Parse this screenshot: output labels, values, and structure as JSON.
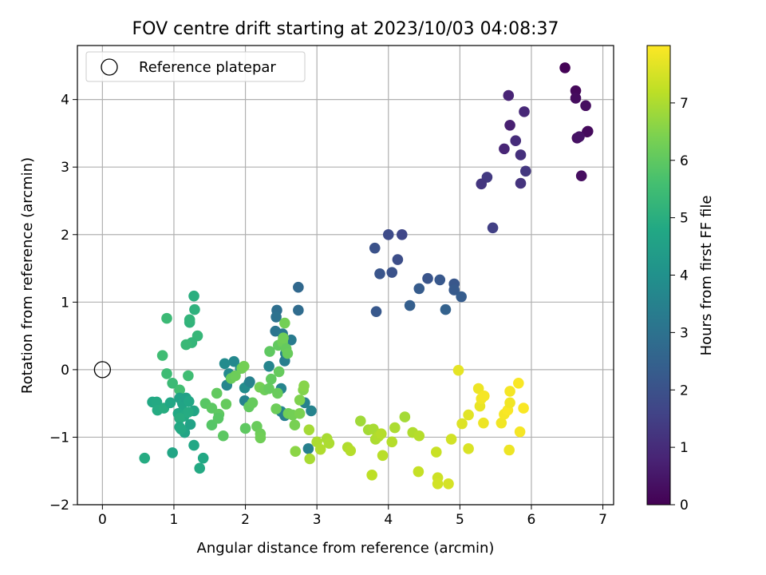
{
  "chart_data": {
    "type": "scatter",
    "title": "FOV centre drift starting at 2023/10/03 04:08:37",
    "xlabel": "Angular distance from reference (arcmin)",
    "ylabel": "Rotation from reference (arcmin)",
    "xlim": [
      -0.35,
      7.15
    ],
    "ylim": [
      -2.0,
      4.8
    ],
    "xticks": [
      0,
      1,
      2,
      3,
      4,
      5,
      6,
      7
    ],
    "yticks": [
      -2,
      -1,
      0,
      1,
      2,
      3,
      4
    ],
    "grid": true,
    "legend": {
      "position": "top-left",
      "entries": [
        "Reference platepar"
      ]
    },
    "reference_point": {
      "x": 0,
      "y": 0,
      "label": "Reference platepar"
    },
    "colorbar": {
      "label": "Hours from first FF file",
      "colormap": "viridis",
      "range": [
        0,
        8.0
      ],
      "ticks": [
        0,
        1,
        2,
        3,
        4,
        5,
        6,
        7
      ]
    },
    "points": [
      {
        "x": 6.47,
        "y": 4.47,
        "t": 0.05
      },
      {
        "x": 6.62,
        "y": 4.13,
        "t": 0.15
      },
      {
        "x": 6.62,
        "y": 4.02,
        "t": 0.25
      },
      {
        "x": 6.76,
        "y": 3.91,
        "t": 0.3
      },
      {
        "x": 6.78,
        "y": 3.52,
        "t": 0.1
      },
      {
        "x": 6.79,
        "y": 3.53,
        "t": 0.2
      },
      {
        "x": 6.64,
        "y": 3.43,
        "t": 0.35
      },
      {
        "x": 6.67,
        "y": 3.45,
        "t": 0.4
      },
      {
        "x": 6.7,
        "y": 2.87,
        "t": 0.3
      },
      {
        "x": 5.68,
        "y": 4.06,
        "t": 0.8
      },
      {
        "x": 5.9,
        "y": 3.82,
        "t": 0.9
      },
      {
        "x": 5.7,
        "y": 3.62,
        "t": 0.7
      },
      {
        "x": 5.78,
        "y": 3.39,
        "t": 1.0
      },
      {
        "x": 5.62,
        "y": 3.27,
        "t": 0.85
      },
      {
        "x": 5.85,
        "y": 3.18,
        "t": 1.1
      },
      {
        "x": 5.92,
        "y": 2.94,
        "t": 1.3
      },
      {
        "x": 5.38,
        "y": 2.85,
        "t": 1.35
      },
      {
        "x": 5.3,
        "y": 2.75,
        "t": 1.25
      },
      {
        "x": 5.85,
        "y": 2.76,
        "t": 1.2
      },
      {
        "x": 5.46,
        "y": 2.1,
        "t": 1.5
      },
      {
        "x": 4.0,
        "y": 2.0,
        "t": 1.8
      },
      {
        "x": 4.19,
        "y": 2.0,
        "t": 1.7
      },
      {
        "x": 3.81,
        "y": 1.8,
        "t": 2.0
      },
      {
        "x": 4.13,
        "y": 1.63,
        "t": 1.9
      },
      {
        "x": 3.88,
        "y": 1.42,
        "t": 2.1
      },
      {
        "x": 4.05,
        "y": 1.44,
        "t": 2.0
      },
      {
        "x": 4.55,
        "y": 1.35,
        "t": 2.1
      },
      {
        "x": 4.72,
        "y": 1.33,
        "t": 2.2
      },
      {
        "x": 4.92,
        "y": 1.27,
        "t": 2.15
      },
      {
        "x": 4.43,
        "y": 1.2,
        "t": 2.3
      },
      {
        "x": 4.92,
        "y": 1.18,
        "t": 2.25
      },
      {
        "x": 5.02,
        "y": 1.08,
        "t": 2.35
      },
      {
        "x": 4.3,
        "y": 0.95,
        "t": 2.4
      },
      {
        "x": 4.8,
        "y": 0.89,
        "t": 2.5
      },
      {
        "x": 3.83,
        "y": 0.86,
        "t": 2.2
      },
      {
        "x": 2.74,
        "y": 1.22,
        "t": 2.7
      },
      {
        "x": 2.44,
        "y": 0.88,
        "t": 2.9
      },
      {
        "x": 2.74,
        "y": 0.88,
        "t": 2.8
      },
      {
        "x": 2.43,
        "y": 0.78,
        "t": 3.0
      },
      {
        "x": 2.42,
        "y": 0.57,
        "t": 3.1
      },
      {
        "x": 2.52,
        "y": 0.53,
        "t": 3.2
      },
      {
        "x": 2.64,
        "y": 0.44,
        "t": 3.3
      },
      {
        "x": 2.56,
        "y": 0.24,
        "t": 3.5
      },
      {
        "x": 2.55,
        "y": 0.13,
        "t": 3.4
      },
      {
        "x": 2.33,
        "y": 0.05,
        "t": 3.6
      },
      {
        "x": 2.5,
        "y": -0.28,
        "t": 3.6
      },
      {
        "x": 1.84,
        "y": 0.12,
        "t": 3.7
      },
      {
        "x": 1.71,
        "y": 0.09,
        "t": 3.8
      },
      {
        "x": 1.93,
        "y": 0.02,
        "t": 3.9
      },
      {
        "x": 1.77,
        "y": -0.06,
        "t": 3.75
      },
      {
        "x": 1.99,
        "y": -0.27,
        "t": 3.85
      },
      {
        "x": 2.05,
        "y": -0.2,
        "t": 3.95
      },
      {
        "x": 2.06,
        "y": -0.18,
        "t": 3.5
      },
      {
        "x": 1.74,
        "y": -0.23,
        "t": 3.65
      },
      {
        "x": 1.99,
        "y": -0.46,
        "t": 3.55
      },
      {
        "x": 2.5,
        "y": -0.62,
        "t": 3.6
      },
      {
        "x": 2.55,
        "y": -0.68,
        "t": 3.4
      },
      {
        "x": 2.83,
        "y": -0.49,
        "t": 3.5
      },
      {
        "x": 2.92,
        "y": -0.61,
        "t": 3.55
      },
      {
        "x": 2.88,
        "y": -1.17,
        "t": 3.45
      },
      {
        "x": 1.28,
        "y": 1.09,
        "t": 5.0
      },
      {
        "x": 1.29,
        "y": 0.89,
        "t": 5.1
      },
      {
        "x": 1.22,
        "y": 0.7,
        "t": 5.15
      },
      {
        "x": 1.22,
        "y": 0.74,
        "t": 5.2
      },
      {
        "x": 1.33,
        "y": 0.5,
        "t": 5.3
      },
      {
        "x": 1.25,
        "y": 0.4,
        "t": 5.25
      },
      {
        "x": 1.17,
        "y": 0.37,
        "t": 5.35
      },
      {
        "x": 0.9,
        "y": 0.76,
        "t": 5.4
      },
      {
        "x": 0.84,
        "y": 0.21,
        "t": 5.5
      },
      {
        "x": 0.9,
        "y": -0.06,
        "t": 5.45
      },
      {
        "x": 1.2,
        "y": -0.09,
        "t": 5.5
      },
      {
        "x": 0.98,
        "y": -0.2,
        "t": 5.4
      },
      {
        "x": 1.08,
        "y": -0.3,
        "t": 5.55
      },
      {
        "x": 0.7,
        "y": -0.48,
        "t": 4.8
      },
      {
        "x": 0.76,
        "y": -0.48,
        "t": 4.85
      },
      {
        "x": 0.77,
        "y": -0.6,
        "t": 4.9
      },
      {
        "x": 0.86,
        "y": -0.57,
        "t": 4.95
      },
      {
        "x": 0.95,
        "y": -0.49,
        "t": 4.75
      },
      {
        "x": 1.08,
        "y": -0.42,
        "t": 4.6
      },
      {
        "x": 1.12,
        "y": -0.5,
        "t": 4.65
      },
      {
        "x": 1.17,
        "y": -0.42,
        "t": 4.55
      },
      {
        "x": 1.12,
        "y": -0.62,
        "t": 4.7
      },
      {
        "x": 1.21,
        "y": -0.47,
        "t": 4.75
      },
      {
        "x": 1.06,
        "y": -0.65,
        "t": 4.8
      },
      {
        "x": 1.14,
        "y": -0.69,
        "t": 4.85
      },
      {
        "x": 1.28,
        "y": -0.61,
        "t": 4.7
      },
      {
        "x": 1.2,
        "y": -0.63,
        "t": 4.9
      },
      {
        "x": 1.08,
        "y": -0.72,
        "t": 4.95
      },
      {
        "x": 1.08,
        "y": -0.85,
        "t": 4.8
      },
      {
        "x": 1.23,
        "y": -0.81,
        "t": 4.6
      },
      {
        "x": 1.15,
        "y": -0.93,
        "t": 4.65
      },
      {
        "x": 1.1,
        "y": -0.88,
        "t": 4.85
      },
      {
        "x": 0.98,
        "y": -1.23,
        "t": 4.7
      },
      {
        "x": 1.28,
        "y": -1.12,
        "t": 4.75
      },
      {
        "x": 1.41,
        "y": -1.31,
        "t": 4.8
      },
      {
        "x": 0.59,
        "y": -1.31,
        "t": 4.9
      },
      {
        "x": 1.36,
        "y": -1.46,
        "t": 4.85
      },
      {
        "x": 1.44,
        "y": -0.5,
        "t": 5.9
      },
      {
        "x": 1.53,
        "y": -0.57,
        "t": 5.95
      },
      {
        "x": 1.63,
        "y": -0.66,
        "t": 6.0
      },
      {
        "x": 1.53,
        "y": -0.82,
        "t": 5.85
      },
      {
        "x": 1.62,
        "y": -0.72,
        "t": 5.9
      },
      {
        "x": 1.69,
        "y": -0.98,
        "t": 5.95
      },
      {
        "x": 1.6,
        "y": -0.35,
        "t": 6.05
      },
      {
        "x": 1.73,
        "y": -0.51,
        "t": 6.1
      },
      {
        "x": 1.8,
        "y": -0.13,
        "t": 6.15
      },
      {
        "x": 1.86,
        "y": -0.09,
        "t": 6.2
      },
      {
        "x": 1.95,
        "y": 0.02,
        "t": 6.25
      },
      {
        "x": 1.98,
        "y": 0.05,
        "t": 6.3
      },
      {
        "x": 2.0,
        "y": -0.87,
        "t": 6.0
      },
      {
        "x": 2.05,
        "y": -0.55,
        "t": 6.05
      },
      {
        "x": 2.1,
        "y": -0.49,
        "t": 6.1
      },
      {
        "x": 2.16,
        "y": -0.84,
        "t": 6.15
      },
      {
        "x": 2.21,
        "y": -0.95,
        "t": 6.2
      },
      {
        "x": 2.21,
        "y": -1.01,
        "t": 6.25
      },
      {
        "x": 2.2,
        "y": -0.26,
        "t": 6.3
      },
      {
        "x": 2.27,
        "y": -0.3,
        "t": 6.2
      },
      {
        "x": 2.33,
        "y": -0.28,
        "t": 6.1
      },
      {
        "x": 2.36,
        "y": -0.14,
        "t": 6.05
      },
      {
        "x": 2.34,
        "y": 0.27,
        "t": 6.0
      },
      {
        "x": 2.45,
        "y": -0.35,
        "t": 6.15
      },
      {
        "x": 2.47,
        "y": -0.03,
        "t": 6.1
      },
      {
        "x": 2.46,
        "y": 0.36,
        "t": 6.05
      },
      {
        "x": 2.52,
        "y": 0.41,
        "t": 6.2
      },
      {
        "x": 2.53,
        "y": 0.47,
        "t": 6.25
      },
      {
        "x": 2.55,
        "y": 0.69,
        "t": 6.3
      },
      {
        "x": 2.57,
        "y": 0.31,
        "t": 6.1
      },
      {
        "x": 2.59,
        "y": 0.24,
        "t": 6.15
      },
      {
        "x": 2.43,
        "y": -0.58,
        "t": 6.2
      },
      {
        "x": 2.6,
        "y": -0.65,
        "t": 6.25
      },
      {
        "x": 2.66,
        "y": -0.67,
        "t": 6.3
      },
      {
        "x": 2.69,
        "y": -0.82,
        "t": 6.35
      },
      {
        "x": 2.76,
        "y": -0.65,
        "t": 6.4
      },
      {
        "x": 2.76,
        "y": -0.45,
        "t": 6.45
      },
      {
        "x": 2.81,
        "y": -0.3,
        "t": 6.5
      },
      {
        "x": 2.82,
        "y": -0.24,
        "t": 6.55
      },
      {
        "x": 2.7,
        "y": -1.21,
        "t": 6.6
      },
      {
        "x": 2.89,
        "y": -0.89,
        "t": 6.9
      },
      {
        "x": 2.9,
        "y": -1.32,
        "t": 6.95
      },
      {
        "x": 3.0,
        "y": -1.07,
        "t": 7.0
      },
      {
        "x": 3.05,
        "y": -1.18,
        "t": 7.05
      },
      {
        "x": 3.14,
        "y": -1.02,
        "t": 6.95
      },
      {
        "x": 3.17,
        "y": -1.09,
        "t": 7.0
      },
      {
        "x": 3.43,
        "y": -1.15,
        "t": 7.05
      },
      {
        "x": 3.47,
        "y": -1.2,
        "t": 7.1
      },
      {
        "x": 3.61,
        "y": -0.76,
        "t": 6.85
      },
      {
        "x": 3.72,
        "y": -0.89,
        "t": 6.9
      },
      {
        "x": 3.79,
        "y": -0.88,
        "t": 6.95
      },
      {
        "x": 3.82,
        "y": -1.03,
        "t": 7.0
      },
      {
        "x": 3.86,
        "y": -0.99,
        "t": 7.05
      },
      {
        "x": 3.9,
        "y": -0.95,
        "t": 7.1
      },
      {
        "x": 3.77,
        "y": -1.56,
        "t": 7.2
      },
      {
        "x": 3.92,
        "y": -1.27,
        "t": 7.15
      },
      {
        "x": 4.05,
        "y": -1.07,
        "t": 7.1
      },
      {
        "x": 4.09,
        "y": -0.86,
        "t": 7.0
      },
      {
        "x": 4.23,
        "y": -0.7,
        "t": 6.9
      },
      {
        "x": 4.34,
        "y": -0.93,
        "t": 7.05
      },
      {
        "x": 4.43,
        "y": -0.98,
        "t": 7.1
      },
      {
        "x": 4.42,
        "y": -1.51,
        "t": 7.3
      },
      {
        "x": 4.67,
        "y": -1.22,
        "t": 7.35
      },
      {
        "x": 4.69,
        "y": -1.6,
        "t": 7.4
      },
      {
        "x": 4.69,
        "y": -1.69,
        "t": 7.45
      },
      {
        "x": 4.84,
        "y": -1.69,
        "t": 7.5
      },
      {
        "x": 4.88,
        "y": -1.03,
        "t": 7.45
      },
      {
        "x": 4.98,
        "y": -0.01,
        "t": 7.7
      },
      {
        "x": 5.03,
        "y": -0.8,
        "t": 7.6
      },
      {
        "x": 5.12,
        "y": -0.67,
        "t": 7.65
      },
      {
        "x": 5.12,
        "y": -1.17,
        "t": 7.55
      },
      {
        "x": 5.26,
        "y": -0.28,
        "t": 7.8
      },
      {
        "x": 5.28,
        "y": -0.54,
        "t": 7.75
      },
      {
        "x": 5.3,
        "y": -0.43,
        "t": 7.85
      },
      {
        "x": 5.34,
        "y": -0.39,
        "t": 7.9
      },
      {
        "x": 5.33,
        "y": -0.79,
        "t": 7.8
      },
      {
        "x": 5.58,
        "y": -0.79,
        "t": 7.85
      },
      {
        "x": 5.62,
        "y": -0.66,
        "t": 7.9
      },
      {
        "x": 5.67,
        "y": -0.6,
        "t": 7.95
      },
      {
        "x": 5.7,
        "y": -0.32,
        "t": 7.9
      },
      {
        "x": 5.7,
        "y": -0.49,
        "t": 7.85
      },
      {
        "x": 5.69,
        "y": -1.19,
        "t": 7.8
      },
      {
        "x": 5.82,
        "y": -0.2,
        "t": 7.95
      },
      {
        "x": 5.84,
        "y": -0.92,
        "t": 7.9
      },
      {
        "x": 5.89,
        "y": -0.57,
        "t": 7.95
      }
    ]
  }
}
